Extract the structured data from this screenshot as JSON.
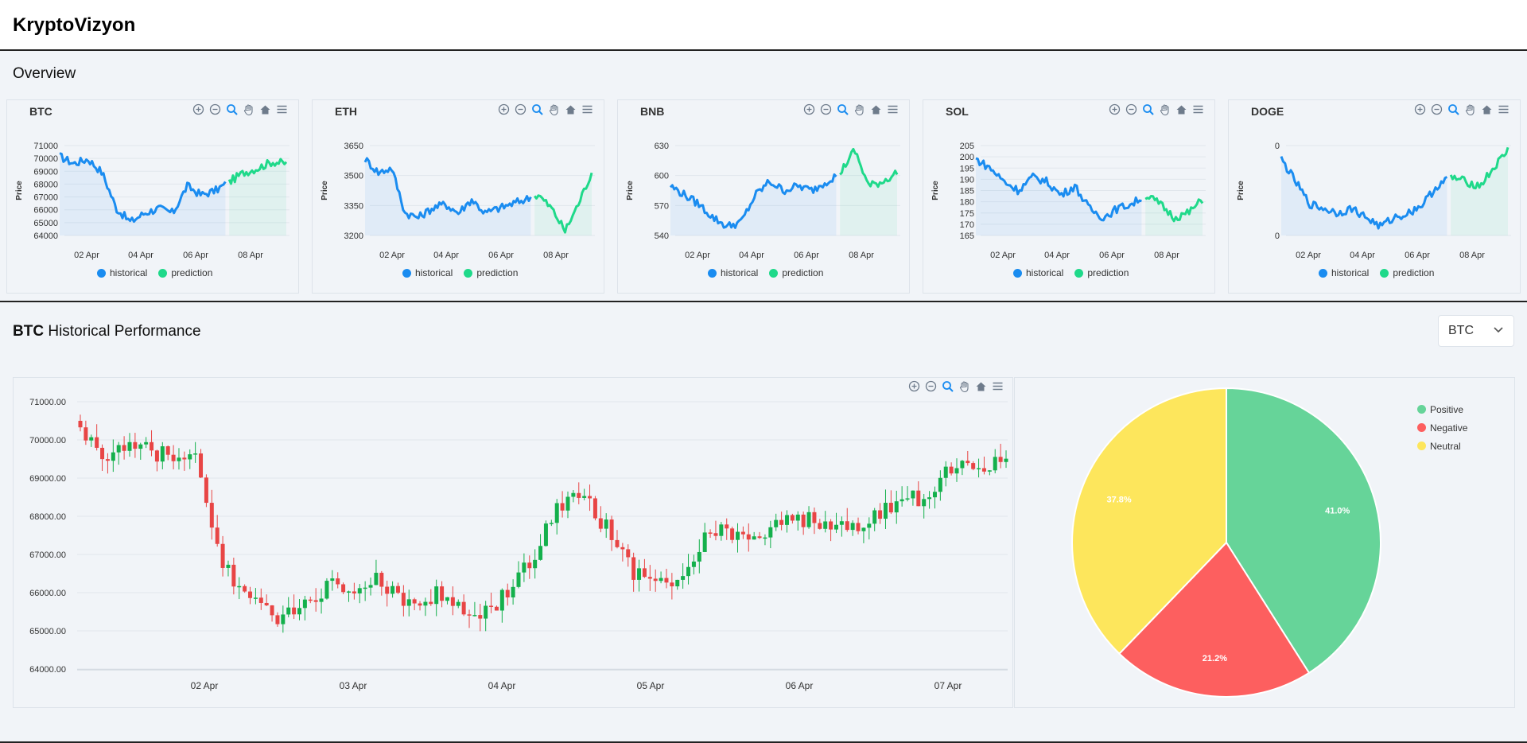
{
  "app": {
    "title": "KryptoVizyon"
  },
  "overview": {
    "title": "Overview",
    "legend": {
      "historical": "historical",
      "prediction": "prediction"
    },
    "colors": {
      "historical": "#1a8cf0",
      "prediction": "#1fd98a"
    },
    "x_ticks": [
      "02 Apr",
      "04 Apr",
      "06 Apr",
      "08 Apr"
    ],
    "y_axis_label": "Price",
    "coins": [
      {
        "symbol": "BTC",
        "y_ticks": [
          "71000",
          "70000",
          "69000",
          "68000",
          "67000",
          "66000",
          "65000",
          "64000"
        ],
        "y_range": [
          64000,
          71000
        ],
        "hist_end": 0.74
      },
      {
        "symbol": "ETH",
        "y_ticks": [
          "3650",
          "3500",
          "3350",
          "3200"
        ],
        "y_range": [
          3200,
          3650
        ],
        "hist_end": 0.74
      },
      {
        "symbol": "BNB",
        "y_ticks": [
          "630",
          "600",
          "570",
          "540"
        ],
        "y_range": [
          540,
          630
        ],
        "hist_end": 0.74
      },
      {
        "symbol": "SOL",
        "y_ticks": [
          "205",
          "200",
          "195",
          "190",
          "185",
          "180",
          "175",
          "170",
          "165"
        ],
        "y_range": [
          165,
          205
        ],
        "hist_end": 0.74
      },
      {
        "symbol": "DOGE",
        "y_ticks": [
          "0",
          "0"
        ],
        "y_range": [
          0,
          1
        ],
        "hist_end": 0.74
      }
    ]
  },
  "historical": {
    "coin": "BTC",
    "title_suffix": "Historical Performance",
    "select_value": "BTC",
    "chart_data": {
      "type": "candlestick",
      "y_ticks": [
        "71000.00",
        "70000.00",
        "69000.00",
        "68000.00",
        "67000.00",
        "66000.00",
        "65000.00",
        "64000.00"
      ],
      "ylim": [
        64000,
        71000
      ],
      "x_ticks": [
        "02 Apr",
        "03 Apr",
        "04 Apr",
        "05 Apr",
        "06 Apr",
        "07 Apr"
      ],
      "colors": {
        "up": "#14b04c",
        "down": "#e84545"
      }
    },
    "sentiment": {
      "chart_data": {
        "type": "pie",
        "slices": [
          {
            "name": "Positive",
            "value": 41.0,
            "label": "41.0%",
            "color": "#66d499"
          },
          {
            "name": "Negative",
            "value": 21.2,
            "label": "21.2%",
            "color": "#fd5f5f"
          },
          {
            "name": "Neutral",
            "value": 37.8,
            "label": "37.8%",
            "color": "#fde65c"
          }
        ]
      }
    }
  }
}
